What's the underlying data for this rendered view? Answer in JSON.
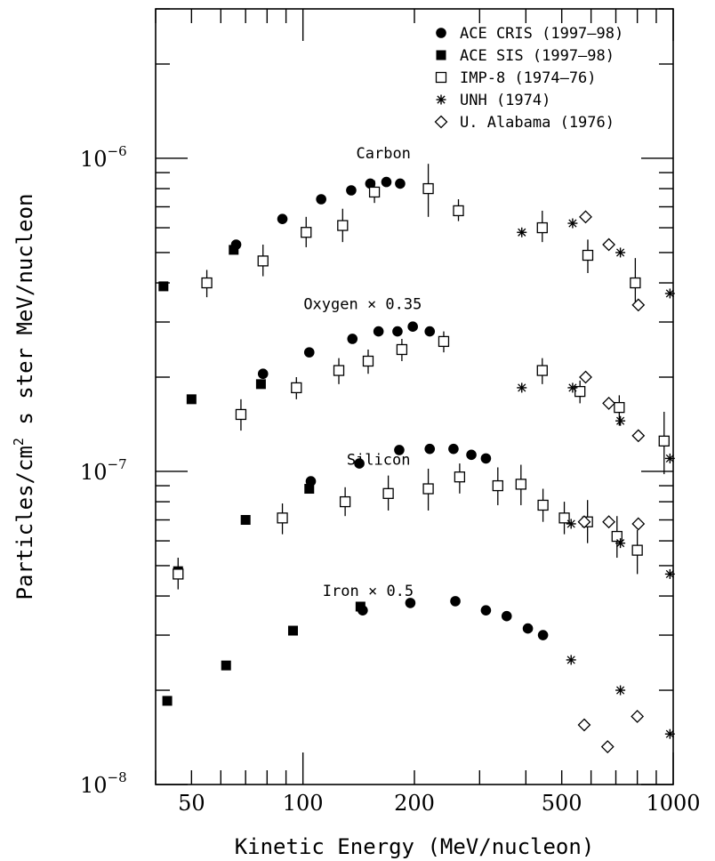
{
  "chart_data": {
    "type": "scatter",
    "xlabel": "Kinetic Energy (MeV/nucleon)",
    "ylabel_parts": [
      "Particles/cm",
      "2",
      " s ster MeV/nucleon"
    ],
    "xscale": "log",
    "yscale": "log",
    "xlim": [
      40,
      1000
    ],
    "ylim": [
      1e-08,
      3e-06
    ],
    "x_ticks_labeled": [
      50,
      100,
      200,
      500,
      1000
    ],
    "y_ticks_labeled": [
      {
        "value": 1e-08,
        "base": "10",
        "exp": "−8"
      },
      {
        "value": 1e-07,
        "base": "10",
        "exp": "−7"
      },
      {
        "value": 1e-06,
        "base": "10",
        "exp": "−6"
      }
    ],
    "legend_position": "top-right",
    "annotations": [
      {
        "text": "Carbon",
        "x": 165,
        "y": 1e-06
      },
      {
        "text": "Oxygen × 0.35",
        "x": 145,
        "y": 3.3e-07
      },
      {
        "text": "Silicon",
        "x": 160,
        "y": 1.05e-07
      },
      {
        "text": "Iron × 0.5",
        "x": 150,
        "y": 4e-08
      }
    ],
    "series": [
      {
        "name": "ACE CRIS (1997–98)",
        "marker": "filled-circle",
        "points": [
          {
            "x": 66,
            "y": 5.3e-07
          },
          {
            "x": 88,
            "y": 6.4e-07
          },
          {
            "x": 112,
            "y": 7.4e-07
          },
          {
            "x": 135,
            "y": 7.9e-07
          },
          {
            "x": 152,
            "y": 8.3e-07
          },
          {
            "x": 168,
            "y": 8.4e-07
          },
          {
            "x": 183,
            "y": 8.3e-07
          },
          {
            "x": 78,
            "y": 2.05e-07
          },
          {
            "x": 104,
            "y": 2.4e-07
          },
          {
            "x": 136,
            "y": 2.65e-07
          },
          {
            "x": 160,
            "y": 2.8e-07
          },
          {
            "x": 180,
            "y": 2.8e-07
          },
          {
            "x": 198,
            "y": 2.9e-07
          },
          {
            "x": 220,
            "y": 2.8e-07
          },
          {
            "x": 105,
            "y": 9.3e-08
          },
          {
            "x": 142,
            "y": 1.06e-07
          },
          {
            "x": 182,
            "y": 1.17e-07
          },
          {
            "x": 220,
            "y": 1.18e-07
          },
          {
            "x": 255,
            "y": 1.18e-07
          },
          {
            "x": 285,
            "y": 1.13e-07
          },
          {
            "x": 312,
            "y": 1.1e-07
          },
          {
            "x": 145,
            "y": 3.6e-08
          },
          {
            "x": 195,
            "y": 3.8e-08
          },
          {
            "x": 258,
            "y": 3.85e-08
          },
          {
            "x": 312,
            "y": 3.6e-08
          },
          {
            "x": 355,
            "y": 3.45e-08
          },
          {
            "x": 405,
            "y": 3.15e-08
          },
          {
            "x": 445,
            "y": 3e-08
          }
        ]
      },
      {
        "name": "ACE SIS (1997–98)",
        "marker": "filled-square",
        "points": [
          {
            "x": 42,
            "y": 3.9e-07
          },
          {
            "x": 65,
            "y": 5.1e-07
          },
          {
            "x": 50,
            "y": 1.7e-07
          },
          {
            "x": 77,
            "y": 1.9e-07
          },
          {
            "x": 46,
            "y": 4.8e-08
          },
          {
            "x": 70,
            "y": 7e-08
          },
          {
            "x": 104,
            "y": 8.8e-08
          },
          {
            "x": 43,
            "y": 1.85e-08
          },
          {
            "x": 62,
            "y": 2.4e-08
          },
          {
            "x": 94,
            "y": 3.1e-08
          },
          {
            "x": 143,
            "y": 3.7e-08
          }
        ]
      },
      {
        "name": "IMP-8 (1974–76)",
        "marker": "open-square",
        "points": [
          {
            "x": 55,
            "y": 4e-07,
            "ylo": 3.6e-07,
            "yhi": 4.4e-07
          },
          {
            "x": 78,
            "y": 4.7e-07,
            "ylo": 4.2e-07,
            "yhi": 5.3e-07
          },
          {
            "x": 102,
            "y": 5.8e-07,
            "ylo": 5.2e-07,
            "yhi": 6.5e-07
          },
          {
            "x": 128,
            "y": 6.1e-07,
            "ylo": 5.4e-07,
            "yhi": 6.9e-07
          },
          {
            "x": 156,
            "y": 7.8e-07,
            "ylo": 7.2e-07,
            "yhi": 8.5e-07
          },
          {
            "x": 218,
            "y": 8e-07,
            "ylo": 6.5e-07,
            "yhi": 9.6e-07
          },
          {
            "x": 263,
            "y": 6.8e-07,
            "ylo": 6.3e-07,
            "yhi": 7.4e-07
          },
          {
            "x": 443,
            "y": 6e-07,
            "ylo": 5.4e-07,
            "yhi": 6.8e-07
          },
          {
            "x": 588,
            "y": 4.9e-07,
            "ylo": 4.3e-07,
            "yhi": 5.5e-07
          },
          {
            "x": 790,
            "y": 4e-07,
            "ylo": 3.4e-07,
            "yhi": 4.8e-07
          },
          {
            "x": 68,
            "y": 1.52e-07,
            "ylo": 1.35e-07,
            "yhi": 1.7e-07
          },
          {
            "x": 96,
            "y": 1.85e-07,
            "ylo": 1.7e-07,
            "yhi": 2e-07
          },
          {
            "x": 125,
            "y": 2.1e-07,
            "ylo": 1.9e-07,
            "yhi": 2.3e-07
          },
          {
            "x": 150,
            "y": 2.25e-07,
            "ylo": 2.05e-07,
            "yhi": 2.45e-07
          },
          {
            "x": 185,
            "y": 2.45e-07,
            "ylo": 2.25e-07,
            "yhi": 2.65e-07
          },
          {
            "x": 240,
            "y": 2.6e-07,
            "ylo": 2.4e-07,
            "yhi": 2.8e-07
          },
          {
            "x": 443,
            "y": 2.1e-07,
            "ylo": 1.9e-07,
            "yhi": 2.3e-07
          },
          {
            "x": 560,
            "y": 1.8e-07,
            "ylo": 1.65e-07,
            "yhi": 1.95e-07
          },
          {
            "x": 715,
            "y": 1.6e-07,
            "ylo": 1.4e-07,
            "yhi": 1.75e-07
          },
          {
            "x": 945,
            "y": 1.25e-07,
            "ylo": 9.8e-08,
            "yhi": 1.55e-07
          },
          {
            "x": 88,
            "y": 7.1e-08,
            "ylo": 6.3e-08,
            "yhi": 7.9e-08
          },
          {
            "x": 130,
            "y": 8e-08,
            "ylo": 7.2e-08,
            "yhi": 8.9e-08
          },
          {
            "x": 170,
            "y": 8.5e-08,
            "ylo": 7.5e-08,
            "yhi": 9.7e-08
          },
          {
            "x": 218,
            "y": 8.8e-08,
            "ylo": 7.5e-08,
            "yhi": 1.02e-07
          },
          {
            "x": 265,
            "y": 9.6e-08,
            "ylo": 8.5e-08,
            "yhi": 1.06e-07
          },
          {
            "x": 336,
            "y": 9e-08,
            "ylo": 7.8e-08,
            "yhi": 1.03e-07
          },
          {
            "x": 388,
            "y": 9.1e-08,
            "ylo": 7.8e-08,
            "yhi": 1.05e-07
          },
          {
            "x": 445,
            "y": 7.8e-08,
            "ylo": 6.9e-08,
            "yhi": 8.8e-08
          },
          {
            "x": 508,
            "y": 7.1e-08,
            "ylo": 6.3e-08,
            "yhi": 8e-08
          },
          {
            "x": 587,
            "y": 6.9e-08,
            "ylo": 5.9e-08,
            "yhi": 8.1e-08
          },
          {
            "x": 705,
            "y": 6.2e-08,
            "ylo": 5.3e-08,
            "yhi": 7.2e-08
          },
          {
            "x": 800,
            "y": 5.6e-08,
            "ylo": 4.7e-08,
            "yhi": 6.5e-08
          },
          {
            "x": 46,
            "y": 4.7e-08,
            "ylo": 4.2e-08,
            "yhi": 5.3e-08
          }
        ]
      },
      {
        "name": "UNH (1974)",
        "marker": "asterisk",
        "points": [
          {
            "x": 390,
            "y": 5.8e-07
          },
          {
            "x": 535,
            "y": 6.2e-07
          },
          {
            "x": 720,
            "y": 5e-07
          },
          {
            "x": 980,
            "y": 3.7e-07
          },
          {
            "x": 390,
            "y": 1.85e-07
          },
          {
            "x": 535,
            "y": 1.85e-07
          },
          {
            "x": 720,
            "y": 1.45e-07
          },
          {
            "x": 980,
            "y": 1.1e-07
          },
          {
            "x": 530,
            "y": 6.8e-08
          },
          {
            "x": 720,
            "y": 5.9e-08
          },
          {
            "x": 980,
            "y": 4.7e-08
          },
          {
            "x": 530,
            "y": 2.5e-08
          },
          {
            "x": 720,
            "y": 2e-08
          },
          {
            "x": 980,
            "y": 1.45e-08
          }
        ]
      },
      {
        "name": "U. Alabama (1976)",
        "marker": "open-diamond",
        "points": [
          {
            "x": 580,
            "y": 6.5e-07
          },
          {
            "x": 670,
            "y": 5.3e-07
          },
          {
            "x": 805,
            "y": 3.4e-07
          },
          {
            "x": 580,
            "y": 2e-07
          },
          {
            "x": 670,
            "y": 1.65e-07
          },
          {
            "x": 805,
            "y": 1.3e-07
          },
          {
            "x": 575,
            "y": 6.9e-08
          },
          {
            "x": 670,
            "y": 6.9e-08
          },
          {
            "x": 805,
            "y": 6.8e-08
          },
          {
            "x": 575,
            "y": 1.55e-08
          },
          {
            "x": 665,
            "y": 1.32e-08
          },
          {
            "x": 800,
            "y": 1.65e-08
          }
        ]
      }
    ]
  }
}
